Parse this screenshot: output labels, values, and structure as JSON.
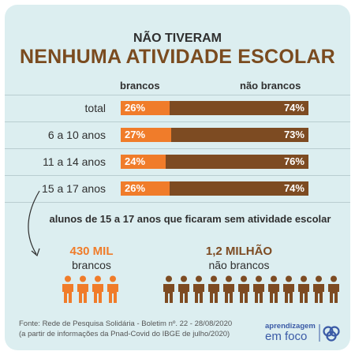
{
  "heading": {
    "line1": "NÃO TIVERAM",
    "line2": "NENHUMA ATIVIDADE ESCOLAR"
  },
  "colors": {
    "brancos": "#f07c2a",
    "nao_brancos": "#7d4b22",
    "logo": "#3a5aa6"
  },
  "chart_data": {
    "type": "bar",
    "stacked": true,
    "orientation": "horizontal",
    "title": "NÃO TIVERAM NENHUMA ATIVIDADE ESCOLAR",
    "categories": [
      "total",
      "6 a 10 anos",
      "11 a 14 anos",
      "15 a 17 anos"
    ],
    "series": [
      {
        "name": "brancos",
        "values": [
          26,
          27,
          24,
          26
        ],
        "labels": [
          "26%",
          "27%",
          "24%",
          "26%"
        ]
      },
      {
        "name": "não brancos",
        "values": [
          74,
          73,
          76,
          74
        ],
        "labels": [
          "74%",
          "73%",
          "76%",
          "74%"
        ]
      }
    ],
    "xlim": [
      0,
      100
    ],
    "legend": "top"
  },
  "highlight": {
    "subtitle": "alunos de 15 a 17 anos que ficaram sem atividade escolar",
    "brancos": {
      "value": "430 MIL",
      "label": "brancos",
      "icon": "person-icon",
      "icon_count": 4
    },
    "nao_brancos": {
      "value": "1,2 MILHÃO",
      "label": "não brancos",
      "icon": "person-icon",
      "icon_count": 12
    }
  },
  "footer": {
    "source_line1": "Fonte: Rede de Pesquisa Solidária - Boletim nº. 22 - 28/08/2020",
    "source_line2": "(a partir de informações da Pnad-Covid do IBGE de julho/2020)",
    "logo_line1": "aprendizagem",
    "logo_line2": "em foco"
  }
}
